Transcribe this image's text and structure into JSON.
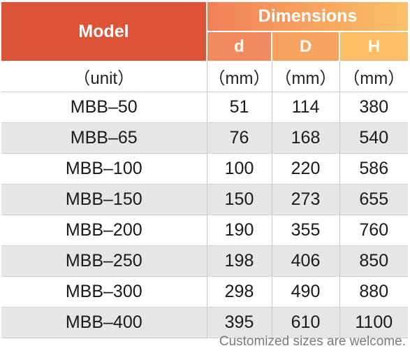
{
  "header": {
    "model": "Model",
    "dimensions": "Dimensions",
    "cols": [
      "d",
      "D",
      "H"
    ]
  },
  "units": {
    "model": "（unit）",
    "d": "（mm）",
    "D": "（mm）",
    "H": "（mm）"
  },
  "rows": [
    {
      "model": "MBB–50",
      "d": "51",
      "D": "114",
      "H": "380"
    },
    {
      "model": "MBB–65",
      "d": "76",
      "D": "168",
      "H": "540"
    },
    {
      "model": "MBB–100",
      "d": "100",
      "D": "220",
      "H": "586"
    },
    {
      "model": "MBB–150",
      "d": "150",
      "D": "273",
      "H": "655"
    },
    {
      "model": "MBB–200",
      "d": "190",
      "D": "355",
      "H": "760"
    },
    {
      "model": "MBB–250",
      "d": "198",
      "D": "406",
      "H": "850"
    },
    {
      "model": "MBB–300",
      "d": "298",
      "D": "490",
      "H": "880"
    },
    {
      "model": "MBB–400",
      "d": "395",
      "D": "610",
      "H": "1100"
    }
  ],
  "footnote": "Customized sizes are welcome.",
  "colors": {
    "header_model": "#dc5438",
    "header_dims_start": "#f08058",
    "header_dims_end": "#fbc168",
    "row_shade": "#e6e6e6"
  }
}
